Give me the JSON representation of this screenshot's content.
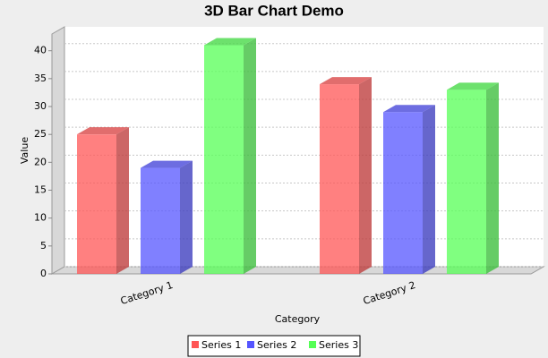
{
  "chart_data": {
    "type": "bar3d",
    "title": "3D Bar Chart Demo",
    "x_label": "Category",
    "y_label": "Value",
    "categories": [
      "Category 1",
      "Category 2"
    ],
    "series": [
      {
        "name": "Series 1",
        "color": "#ff5555",
        "values": [
          25,
          34
        ]
      },
      {
        "name": "Series 2",
        "color": "#5555ff",
        "values": [
          19,
          29
        ]
      },
      {
        "name": "Series 3",
        "color": "#55ff55",
        "values": [
          41,
          33
        ]
      }
    ],
    "ylim": [
      0,
      43
    ],
    "yticks": [
      0,
      5,
      10,
      15,
      20,
      25,
      30,
      35,
      40
    ],
    "grid": true
  }
}
